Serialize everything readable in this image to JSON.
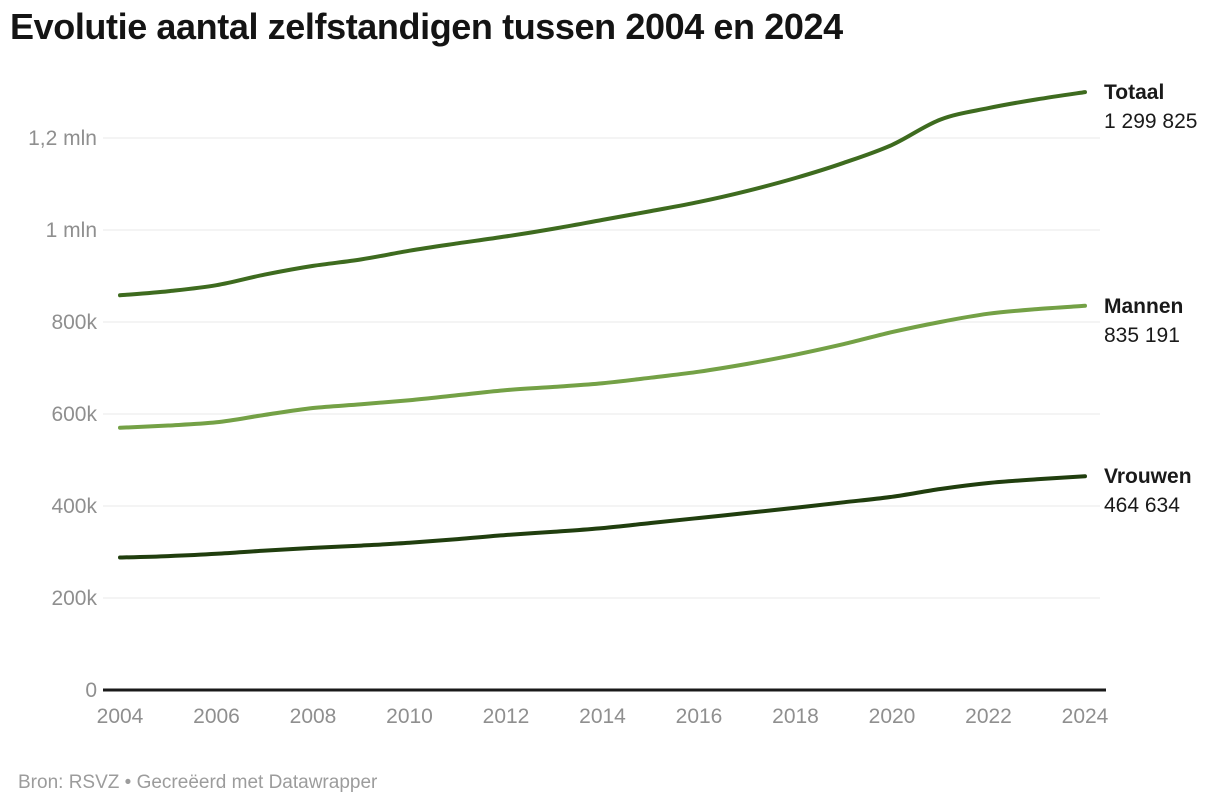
{
  "title": "Evolutie aantal zelfstandigen tussen 2004 en 2024",
  "footer": {
    "text": "Bron: RSVZ • Gecreëerd met Datawrapper"
  },
  "colors": {
    "axis_text": "#8f8f8f",
    "gridline": "#e8e8e8",
    "baseline": "#1a1a1a",
    "title_text": "#141414",
    "footer_text": "#9c9c9c"
  },
  "chart_data": {
    "type": "line",
    "title": "Evolutie aantal zelfstandigen tussen 2004 en 2024",
    "xlabel": "",
    "ylabel": "",
    "x": [
      2004,
      2005,
      2006,
      2007,
      2008,
      2009,
      2010,
      2011,
      2012,
      2013,
      2014,
      2015,
      2016,
      2017,
      2018,
      2019,
      2020,
      2021,
      2022,
      2023,
      2024
    ],
    "x_ticks": [
      {
        "year": 2004,
        "label": "2004"
      },
      {
        "year": 2006,
        "label": "2006"
      },
      {
        "year": 2008,
        "label": "2008"
      },
      {
        "year": 2010,
        "label": "2010"
      },
      {
        "year": 2012,
        "label": "2012"
      },
      {
        "year": 2014,
        "label": "2014"
      },
      {
        "year": 2016,
        "label": "2016"
      },
      {
        "year": 2018,
        "label": "2018"
      },
      {
        "year": 2020,
        "label": "2020"
      },
      {
        "year": 2022,
        "label": "2022"
      },
      {
        "year": 2024,
        "label": "2024"
      }
    ],
    "y_ticks": [
      {
        "value": 0,
        "label": "0"
      },
      {
        "value": 200000,
        "label": "200k"
      },
      {
        "value": 400000,
        "label": "400k"
      },
      {
        "value": 600000,
        "label": "600k"
      },
      {
        "value": 800000,
        "label": "800k"
      },
      {
        "value": 1000000,
        "label": "1 mln"
      },
      {
        "value": 1200000,
        "label": "1,2 mln"
      }
    ],
    "ylim": [
      0,
      1300000
    ],
    "xlim": [
      2004,
      2024
    ],
    "grid": "horizontal",
    "legend_position": "right-end-labels",
    "series": [
      {
        "name": "Totaal",
        "color": "#3e6b1f",
        "end_value_label": "1 299 825",
        "end_value": 1299825,
        "values": [
          858000,
          867000,
          880000,
          903000,
          922000,
          936000,
          955000,
          971000,
          986000,
          1003000,
          1022000,
          1041000,
          1061000,
          1085000,
          1113000,
          1146000,
          1185000,
          1240000,
          1265000,
          1284000,
          1299825
        ]
      },
      {
        "name": "Mannen",
        "color": "#74a146",
        "end_value_label": "835 191",
        "end_value": 835191,
        "values": [
          570000,
          575000,
          582000,
          598000,
          613000,
          621000,
          630000,
          641000,
          652000,
          659000,
          667000,
          679000,
          692000,
          709000,
          729000,
          752000,
          778000,
          800000,
          818000,
          828000,
          835191
        ]
      },
      {
        "name": "Vrouwen",
        "color": "#203e0e",
        "end_value_label": "464 634",
        "end_value": 464634,
        "values": [
          288000,
          291000,
          296000,
          303000,
          309000,
          314000,
          320000,
          328000,
          337000,
          344000,
          352000,
          363000,
          374000,
          385000,
          396000,
          408000,
          420000,
          437000,
          450000,
          458000,
          464634
        ]
      }
    ]
  }
}
